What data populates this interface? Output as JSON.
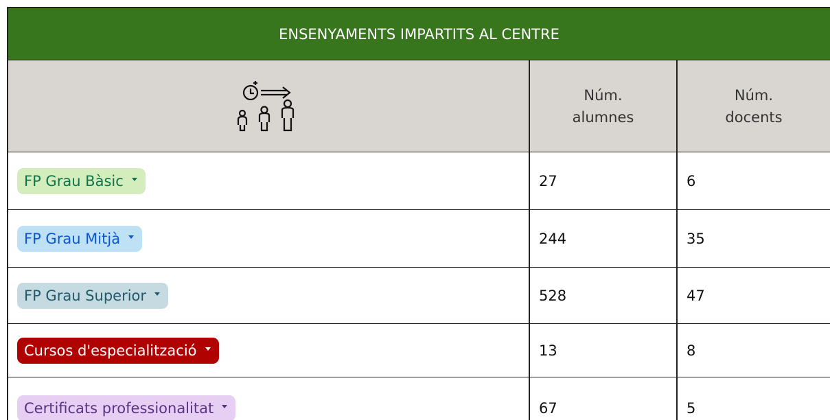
{
  "table": {
    "title": "ENSENYAMENTS IMPARTITS AL CENTRE",
    "header": [
      "Núm.\nalumnes",
      "Núm.\ndocents"
    ],
    "rows": [
      [
        "FP Grau Bàsic",
        "27",
        "6"
      ],
      [
        "FP Grau Mitjà",
        "244",
        "35"
      ],
      [
        "FP Grau Superior",
        "528",
        "47"
      ],
      [
        "Cursos d'especialització",
        "13",
        "8"
      ],
      [
        "Certificats professionalitat",
        "67",
        "5"
      ]
    ]
  }
}
